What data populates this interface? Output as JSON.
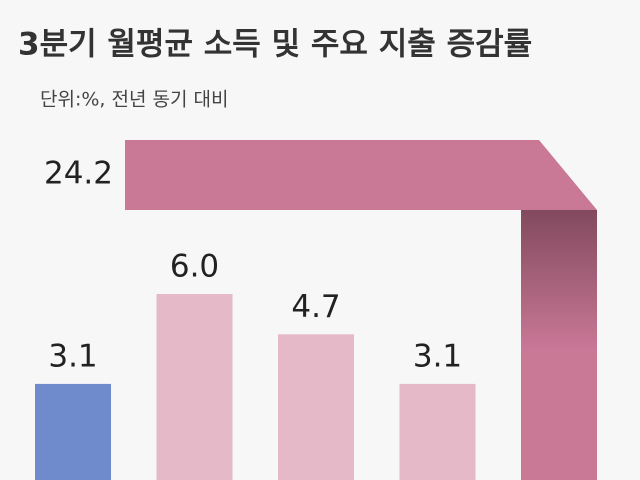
{
  "chart_data": {
    "type": "bar",
    "title": "3분기 월평균 소득 및 주요 지출 증감률",
    "subtitle": "단위:%, 전년 동기 대비",
    "categories": [
      null,
      null,
      null,
      null,
      null
    ],
    "values": [
      3.1,
      6.0,
      4.7,
      3.1,
      24.2
    ],
    "value_labels": [
      "3.1",
      "6.0",
      "4.7",
      "3.1",
      "24.2"
    ],
    "colors": [
      "#6f8bcb",
      "#e5b9c7",
      "#e5b9c7",
      "#e5b9c7",
      "#c97896"
    ]
  }
}
